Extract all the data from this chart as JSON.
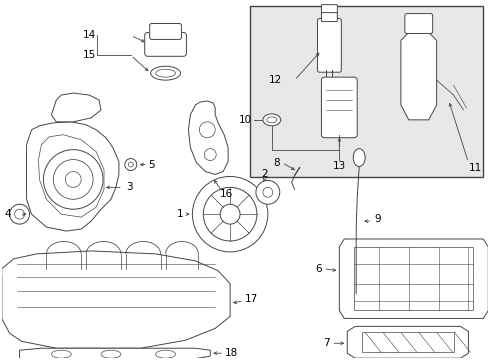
{
  "bg_color": "#ffffff",
  "inset_bg": "#e8e8e8",
  "line_color": "#444444",
  "text_color": "#000000",
  "fig_width": 4.9,
  "fig_height": 3.6,
  "dpi": 100
}
